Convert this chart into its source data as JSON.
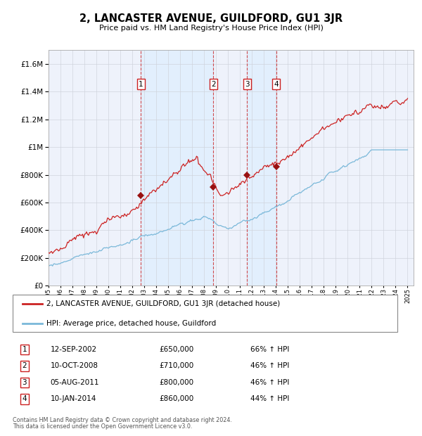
{
  "title": "2, LANCASTER AVENUE, GUILDFORD, GU1 3JR",
  "subtitle": "Price paid vs. HM Land Registry's House Price Index (HPI)",
  "legend_line1": "2, LANCASTER AVENUE, GUILDFORD, GU1 3JR (detached house)",
  "legend_line2": "HPI: Average price, detached house, Guildford",
  "footer_line1": "Contains HM Land Registry data © Crown copyright and database right 2024.",
  "footer_line2": "This data is licensed under the Open Government Licence v3.0.",
  "transactions": [
    {
      "num": 1,
      "date": "12-SEP-2002",
      "price": "£650,000",
      "pct": "66% ↑ HPI",
      "year": 2002.71
    },
    {
      "num": 2,
      "date": "10-OCT-2008",
      "price": "£710,000",
      "pct": "46% ↑ HPI",
      "year": 2008.78
    },
    {
      "num": 3,
      "date": "05-AUG-2011",
      "price": "£800,000",
      "pct": "46% ↑ HPI",
      "year": 2011.6
    },
    {
      "num": 4,
      "date": "10-JAN-2014",
      "price": "£860,000",
      "pct": "44% ↑ HPI",
      "year": 2014.03
    }
  ],
  "transaction_prices": [
    650000,
    710000,
    800000,
    860000
  ],
  "hpi_line_color": "#7ab8d9",
  "price_line_color": "#cc2222",
  "marker_color": "#991111",
  "vline_color": "#cc2222",
  "shade_color": "#ddeeff",
  "ylim": [
    0,
    1700000
  ],
  "yticks": [
    0,
    200000,
    400000,
    600000,
    800000,
    1000000,
    1200000,
    1400000,
    1600000
  ],
  "background_color": "#ffffff",
  "plot_bg_color": "#eef2fb"
}
